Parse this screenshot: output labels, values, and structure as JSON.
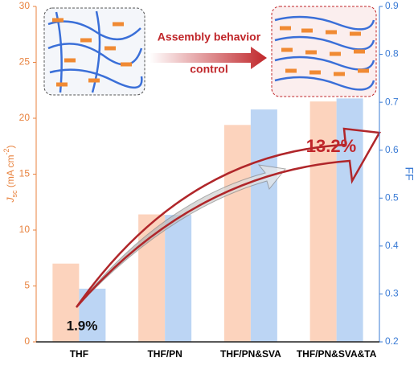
{
  "chart_data": {
    "type": "bar",
    "categories": [
      "THF",
      "THF/PN",
      "THF/PN&SVA",
      "THF/PN&SVA&TA"
    ],
    "ylabel": [
      "J",
      "sc",
      " (mA cm",
      "-2",
      ")"
    ],
    "y2label": "FF",
    "series": [
      {
        "name": "Jsc",
        "color": "#fcd3bd",
        "values": [
          7.0,
          11.4,
          19.4,
          21.5
        ]
      },
      {
        "name": "FF",
        "color": "#bcd5f4",
        "axis": "y2",
        "values": [
          0.311,
          0.465,
          0.685,
          0.708
        ]
      }
    ],
    "ylim": [
      0,
      30
    ],
    "yticks": [
      0,
      5,
      10,
      15,
      20,
      25,
      30
    ],
    "y2lim": [
      0.2,
      0.9
    ],
    "y2ticks": [
      0.2,
      0.3,
      0.4,
      0.5,
      0.6,
      0.7,
      0.8,
      0.9
    ],
    "y_color": "#e8823e",
    "y2_color": "#3a7bd5",
    "annotations": [
      "Assembly behavior",
      "control",
      "13.2%",
      "1.9%"
    ]
  }
}
